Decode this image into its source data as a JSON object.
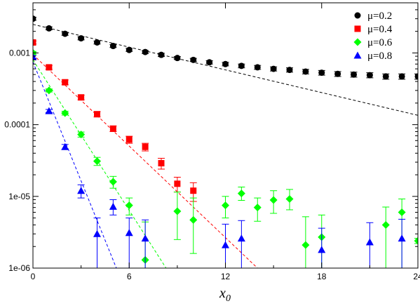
{
  "chart_data": {
    "type": "scatter",
    "title": "",
    "xlabel": "x",
    "xlabel_sub": "0",
    "ylabel": "",
    "xlim": [
      0,
      24
    ],
    "ylim": [
      1e-06,
      0.005
    ],
    "yscale": "log",
    "grid": false,
    "legend_position": "top-right",
    "x_ticks": [
      0,
      6,
      12,
      18,
      24
    ],
    "x_tick_labels": [
      "0",
      "6",
      "12",
      "18",
      "24"
    ],
    "y_ticks": [
      1e-06,
      1e-05,
      0.0001,
      0.001
    ],
    "y_tick_labels": [
      "1e-06",
      "1e-05",
      "0.0001",
      "0.001"
    ],
    "series": [
      {
        "name": "μ=0.2",
        "marker": "circle",
        "color": "#000000",
        "points": [
          {
            "x": 0,
            "y": 0.003,
            "lo": 0.00285,
            "hi": 0.00315
          },
          {
            "x": 1,
            "y": 0.0022,
            "lo": 0.0021,
            "hi": 0.00231
          },
          {
            "x": 2,
            "y": 0.00185,
            "lo": 0.00176,
            "hi": 0.00194
          },
          {
            "x": 3,
            "y": 0.0016,
            "lo": 0.00152,
            "hi": 0.00168
          },
          {
            "x": 4,
            "y": 0.0014,
            "lo": 0.00133,
            "hi": 0.00147
          },
          {
            "x": 5,
            "y": 0.00125,
            "lo": 0.00119,
            "hi": 0.00131
          },
          {
            "x": 6,
            "y": 0.0011,
            "lo": 0.00105,
            "hi": 0.00116
          },
          {
            "x": 7,
            "y": 0.00103,
            "lo": 0.00098,
            "hi": 0.00108
          },
          {
            "x": 8,
            "y": 0.00094,
            "lo": 0.00089,
            "hi": 0.00099
          },
          {
            "x": 9,
            "y": 0.00085,
            "lo": 0.00081,
            "hi": 0.00089
          },
          {
            "x": 10,
            "y": 0.0008,
            "lo": 0.00076,
            "hi": 0.00084
          },
          {
            "x": 11,
            "y": 0.00074,
            "lo": 0.0007,
            "hi": 0.00078
          },
          {
            "x": 12,
            "y": 0.0007,
            "lo": 0.00066,
            "hi": 0.00074
          },
          {
            "x": 13,
            "y": 0.00066,
            "lo": 0.00062,
            "hi": 0.0007
          },
          {
            "x": 14,
            "y": 0.00063,
            "lo": 0.00059,
            "hi": 0.00067
          },
          {
            "x": 15,
            "y": 0.0006,
            "lo": 0.00056,
            "hi": 0.00064
          },
          {
            "x": 16,
            "y": 0.00058,
            "lo": 0.00054,
            "hi": 0.00062
          },
          {
            "x": 17,
            "y": 0.00055,
            "lo": 0.00051,
            "hi": 0.00059
          },
          {
            "x": 18,
            "y": 0.00053,
            "lo": 0.00049,
            "hi": 0.00057
          },
          {
            "x": 19,
            "y": 0.00051,
            "lo": 0.00047,
            "hi": 0.00055
          },
          {
            "x": 20,
            "y": 0.0005,
            "lo": 0.00046,
            "hi": 0.00054
          },
          {
            "x": 21,
            "y": 0.00049,
            "lo": 0.00045,
            "hi": 0.00053
          },
          {
            "x": 22,
            "y": 0.00047,
            "lo": 0.00043,
            "hi": 0.00051
          },
          {
            "x": 23,
            "y": 0.00047,
            "lo": 0.00043,
            "hi": 0.00051
          },
          {
            "x": 24,
            "y": 0.00047,
            "lo": 0.00043,
            "hi": 0.00051
          }
        ],
        "fit": {
          "x0": 0,
          "y0": 0.0025,
          "x1": 24,
          "y1": 0.000135
        }
      },
      {
        "name": "μ=0.4",
        "marker": "square",
        "color": "#ff0000",
        "points": [
          {
            "x": 0,
            "y": 0.0014,
            "lo": 0.00133,
            "hi": 0.00147
          },
          {
            "x": 1,
            "y": 0.00063,
            "lo": 0.00059,
            "hi": 0.00067
          },
          {
            "x": 2,
            "y": 0.00039,
            "lo": 0.00036,
            "hi": 0.00042
          },
          {
            "x": 3,
            "y": 0.00024,
            "lo": 0.000222,
            "hi": 0.000258
          },
          {
            "x": 4,
            "y": 0.00014,
            "lo": 0.000128,
            "hi": 0.000152
          },
          {
            "x": 5,
            "y": 8.8e-05,
            "lo": 8e-05,
            "hi": 9.6e-05
          },
          {
            "x": 6,
            "y": 6.2e-05,
            "lo": 5.5e-05,
            "hi": 6.9e-05
          },
          {
            "x": 7,
            "y": 4.9e-05,
            "lo": 4.3e-05,
            "hi": 5.5e-05
          },
          {
            "x": 8,
            "y": 2.9e-05,
            "lo": 2.4e-05,
            "hi": 3.4e-05
          },
          {
            "x": 9,
            "y": 1.5e-05,
            "lo": 1.15e-05,
            "hi": 1.85e-05
          },
          {
            "x": 10,
            "y": 1.2e-05,
            "lo": 8.5e-06,
            "hi": 1.55e-05
          }
        ],
        "fit": {
          "x0": 0,
          "y0": 0.00095,
          "x1": 14,
          "y1": 1e-06
        }
      },
      {
        "name": "μ=0.6",
        "marker": "diamond",
        "color": "#00ff00",
        "points": [
          {
            "x": 0,
            "y": 0.001,
            "lo": 0.00095,
            "hi": 0.00105
          },
          {
            "x": 1,
            "y": 0.0003,
            "lo": 0.000285,
            "hi": 0.000315
          },
          {
            "x": 2,
            "y": 0.000145,
            "lo": 0.000136,
            "hi": 0.000154
          },
          {
            "x": 3,
            "y": 7.3e-05,
            "lo": 6.7e-05,
            "hi": 7.9e-05
          },
          {
            "x": 4,
            "y": 3.1e-05,
            "lo": 2.7e-05,
            "hi": 3.5e-05
          },
          {
            "x": 5,
            "y": 1.6e-05,
            "lo": 1.3e-05,
            "hi": 1.9e-05
          },
          {
            "x": 6,
            "y": 7.5e-06,
            "lo": 5.5e-06,
            "hi": 9.5e-06
          },
          {
            "x": 7,
            "y": 1.3e-06,
            "lo": 1e-06,
            "hi": 4.4e-06
          },
          {
            "x": 9,
            "y": 6.2e-06,
            "lo": 2.5e-06,
            "hi": 1.15e-05
          },
          {
            "x": 10,
            "y": 4.7e-06,
            "lo": 1.6e-06,
            "hi": 9.5e-06
          },
          {
            "x": 12,
            "y": 7.5e-06,
            "lo": 5e-06,
            "hi": 1e-05
          },
          {
            "x": 13,
            "y": 1.1e-05,
            "lo": 8.8e-06,
            "hi": 1.35e-05
          },
          {
            "x": 14,
            "y": 7e-06,
            "lo": 4.5e-06,
            "hi": 9.5e-06
          },
          {
            "x": 15,
            "y": 8.9e-06,
            "lo": 5.8e-06,
            "hi": 1.2e-05
          },
          {
            "x": 16,
            "y": 9.2e-06,
            "lo": 6.5e-06,
            "hi": 1.25e-05
          },
          {
            "x": 17,
            "y": 2.1e-06,
            "lo": 1e-06,
            "hi": 5.2e-06
          },
          {
            "x": 18,
            "y": 2.7e-06,
            "lo": 1e-06,
            "hi": 5.5e-06
          },
          {
            "x": 22,
            "y": 4e-06,
            "lo": 1e-06,
            "hi": 7.1e-06
          },
          {
            "x": 23,
            "y": 6e-06,
            "lo": 1e-06,
            "hi": 9.2e-06
          },
          {
            "x": 24,
            "y": 2.4e-06,
            "lo": 2.2e-06,
            "hi": 2.6e-06
          }
        ],
        "fit": {
          "x0": 0,
          "y0": 0.0008,
          "x1": 8.3,
          "y1": 1e-06
        }
      },
      {
        "name": "μ=0.8",
        "marker": "triangle",
        "color": "#0000ff",
        "points": [
          {
            "x": 0,
            "y": 0.00088,
            "lo": 0.00084,
            "hi": 0.00092
          },
          {
            "x": 1,
            "y": 0.000155,
            "lo": 0.000147,
            "hi": 0.000163
          },
          {
            "x": 2,
            "y": 4.9e-05,
            "lo": 4.5e-05,
            "hi": 5.3e-05
          },
          {
            "x": 3,
            "y": 1.2e-05,
            "lo": 9.5e-06,
            "hi": 1.45e-05
          },
          {
            "x": 4,
            "y": 3e-06,
            "lo": 1e-06,
            "hi": 5e-06
          },
          {
            "x": 5,
            "y": 7.2e-06,
            "lo": 5.5e-06,
            "hi": 9e-06
          },
          {
            "x": 6,
            "y": 3.1e-06,
            "lo": 1e-06,
            "hi": 5e-06
          },
          {
            "x": 7,
            "y": 2.6e-06,
            "lo": 1e-06,
            "hi": 4.7e-06
          },
          {
            "x": 12,
            "y": 2.1e-06,
            "lo": 1e-06,
            "hi": 4.1e-06
          },
          {
            "x": 13,
            "y": 2.6e-06,
            "lo": 1e-06,
            "hi": 4.6e-06
          },
          {
            "x": 18,
            "y": 1.8e-06,
            "lo": 1e-06,
            "hi": 3.6e-06
          },
          {
            "x": 21,
            "y": 2.3e-06,
            "lo": 1e-06,
            "hi": 4.3e-06
          },
          {
            "x": 23,
            "y": 2.6e-06,
            "lo": 1e-06,
            "hi": 4.8e-06
          }
        ],
        "fit": {
          "x0": 0,
          "y0": 0.00075,
          "x1": 5.2,
          "y1": 1e-06
        }
      }
    ]
  }
}
